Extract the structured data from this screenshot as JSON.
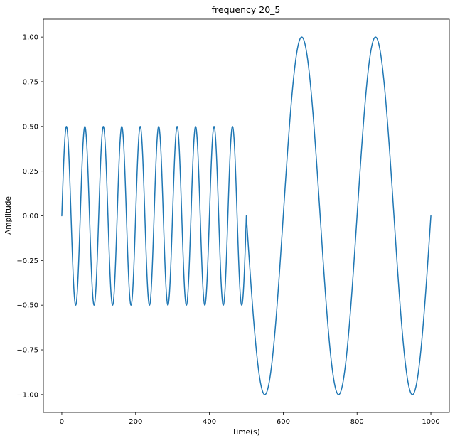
{
  "chart_data": {
    "type": "line",
    "title": "frequency 20_5",
    "xlabel": "Time(s)",
    "ylabel": "Amplitude",
    "xlim": [
      -50,
      1050
    ],
    "ylim": [
      -1.1,
      1.1
    ],
    "xticks": [
      0,
      200,
      400,
      600,
      800,
      1000
    ],
    "xtick_labels": [
      "0",
      "200",
      "400",
      "600",
      "800",
      "1000"
    ],
    "yticks": [
      1.0,
      0.75,
      0.5,
      0.25,
      0.0,
      -0.25,
      -0.5,
      -0.75,
      -1.0
    ],
    "ytick_labels": [
      "1.00",
      "0.75",
      "0.50",
      "0.25",
      "0.00",
      "−0.25",
      "−0.50",
      "−0.75",
      "−1.00"
    ],
    "grid": false,
    "series": [
      {
        "color": "#1f77b4",
        "segments": [
          {
            "x_start": 0,
            "x_end": 500,
            "amplitude": 0.5,
            "frequency": 0.02
          },
          {
            "x_start": 500,
            "x_end": 1000,
            "amplitude": 1.0,
            "frequency": 0.005
          }
        ]
      }
    ]
  }
}
